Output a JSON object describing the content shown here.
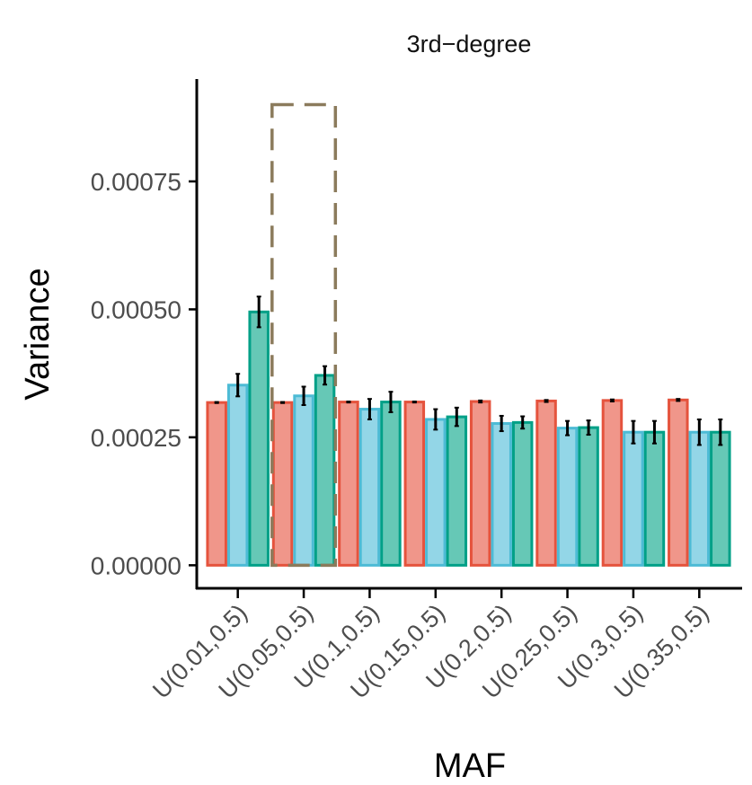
{
  "chart_data": {
    "type": "bar",
    "title": "3rd−degree",
    "xlabel": "MAF",
    "ylabel": "Variance",
    "categories": [
      "U(0.01,0.5)",
      "U(0.05,0.5)",
      "U(0.1,0.5)",
      "U(0.15,0.5)",
      "U(0.2,0.5)",
      "U(0.25,0.5)",
      "U(0.3,0.5)",
      "U(0.35,0.5)"
    ],
    "yticks": [
      "0.00000",
      "0.00025",
      "0.00050",
      "0.00075"
    ],
    "ytick_values": [
      0,
      0.00025,
      0.0005,
      0.00075
    ],
    "ylim": [
      -4.5e-05,
      0.00095
    ],
    "grid": false,
    "legend": "none",
    "highlight": {
      "category_index": 1,
      "ymax": 0.0009,
      "style": "dashed box"
    },
    "series": [
      {
        "color": "#E5533D",
        "fill": "#F0968A",
        "values": [
          0.000318,
          0.000318,
          0.000319,
          0.000319,
          0.00032,
          0.000321,
          0.000322,
          0.000323
        ],
        "errors": [
          1e-06,
          1e-06,
          1e-06,
          1e-06,
          2e-06,
          2e-06,
          2e-06,
          2e-06
        ]
      },
      {
        "color": "#4DBBD5",
        "fill": "#93D6E7",
        "values": [
          0.000352,
          0.000331,
          0.000305,
          0.000285,
          0.000277,
          0.000268,
          0.00026,
          0.00026
        ],
        "errors": [
          2.2e-05,
          1.8e-05,
          2e-05,
          2e-05,
          1.5e-05,
          1.4e-05,
          2.2e-05,
          2.5e-05
        ]
      },
      {
        "color": "#00A087",
        "fill": "#66C8B6",
        "values": [
          0.000495,
          0.000371,
          0.000319,
          0.00029,
          0.000279,
          0.000269,
          0.00026,
          0.00026
        ],
        "errors": [
          3e-05,
          1.8e-05,
          2e-05,
          1.8e-05,
          1.2e-05,
          1.4e-05,
          2.2e-05,
          2.5e-05
        ]
      }
    ]
  }
}
